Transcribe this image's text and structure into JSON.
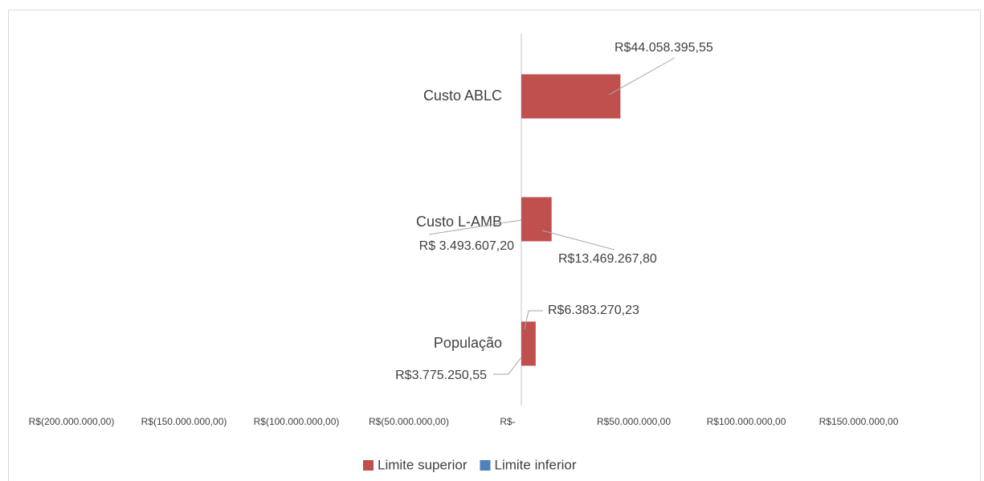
{
  "chart_data": {
    "type": "tornado",
    "categories": [
      "Custo ABLC",
      "Custo L-AMB",
      "População"
    ],
    "series": [
      {
        "name": "Limite superior",
        "color": "#c0504d",
        "values": [
          44058395.55,
          13469267.8,
          6383270.23
        ],
        "value_labels": [
          "R$44.058.395,55",
          "R$13.469.267,80",
          "R$6.383.270,23"
        ]
      },
      {
        "name": "Limite inferior",
        "color": "#4f81bd",
        "values": [
          null,
          3493607.2,
          3775250.55
        ],
        "value_labels": [
          null,
          "R$ 3.493.607,20",
          "R$3.775.250,55"
        ]
      }
    ],
    "xlim": [
      -200000000,
      200000000
    ],
    "xticks": [
      {
        "value": -200000000,
        "label": "R$(200.000.000,00)"
      },
      {
        "value": -150000000,
        "label": "R$(150.000.000,00)"
      },
      {
        "value": -100000000,
        "label": "R$(100.000.000,00)"
      },
      {
        "value": -50000000,
        "label": "R$(50.000.000,00)"
      },
      {
        "value": 0,
        "label": "R$-"
      },
      {
        "value": 50000000,
        "label": "R$50.000.000,00"
      },
      {
        "value": 100000000,
        "label": "R$100.000.000,00"
      },
      {
        "value": 150000000,
        "label": "R$150.000.000,00"
      }
    ],
    "legend": "bottom"
  }
}
